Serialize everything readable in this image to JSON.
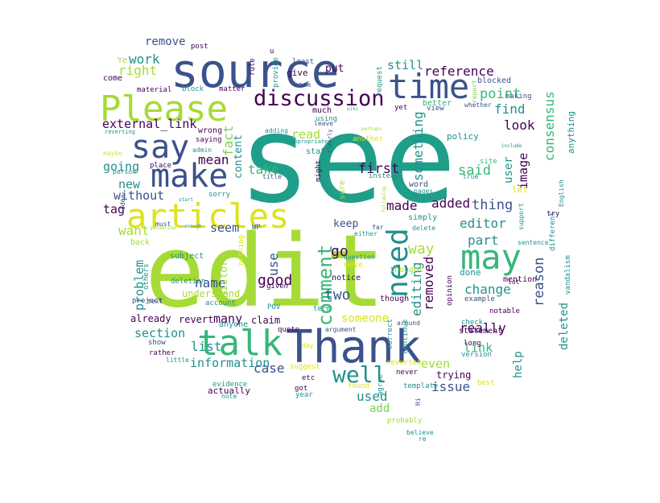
{
  "palette": {
    "dark_purple": "#440154",
    "indigo": "#3b528b",
    "navy": "#2c3e7a",
    "teal": "#21918c",
    "sea_green": "#1f9e89",
    "green": "#35b779",
    "lime": "#7ad151",
    "yellow_green": "#a5db36",
    "yellow": "#dde318"
  },
  "words": [
    {
      "text": "see",
      "color": "sea_green"
    },
    {
      "text": "edit",
      "color": "yellow_green"
    },
    {
      "text": "source",
      "color": "indigo"
    },
    {
      "text": "Please",
      "color": "yellow_green"
    },
    {
      "text": "Thank",
      "color": "indigo"
    },
    {
      "text": "articles",
      "color": "yellow"
    },
    {
      "text": "talk",
      "color": "green"
    },
    {
      "text": "make",
      "color": "indigo"
    },
    {
      "text": "say",
      "color": "indigo"
    },
    {
      "text": "time",
      "color": "indigo"
    },
    {
      "text": "discussion",
      "color": "dark_purple"
    },
    {
      "text": "need",
      "color": "teal"
    },
    {
      "text": "may",
      "color": "green"
    },
    {
      "text": "well",
      "color": "teal"
    },
    {
      "text": "comment",
      "color": "green"
    },
    {
      "text": "work",
      "color": "teal"
    },
    {
      "text": "right",
      "color": "yellow_green"
    },
    {
      "text": "remove",
      "color": "indigo"
    },
    {
      "text": "post",
      "color": "dark_purple"
    },
    {
      "text": "reference",
      "color": "dark_purple"
    },
    {
      "text": "still",
      "color": "teal"
    },
    {
      "text": "point",
      "color": "green"
    },
    {
      "text": "find",
      "color": "teal"
    },
    {
      "text": "look",
      "color": "dark_purple"
    },
    {
      "text": "external_link",
      "color": "dark_purple"
    },
    {
      "text": "fact",
      "color": "lime"
    },
    {
      "text": "mean",
      "color": "dark_purple"
    },
    {
      "text": "content",
      "color": "teal"
    },
    {
      "text": "read",
      "color": "yellow_green"
    },
    {
      "text": "going",
      "color": "teal"
    },
    {
      "text": "take",
      "color": "green"
    },
    {
      "text": "first",
      "color": "dark_purple"
    },
    {
      "text": "something",
      "color": "teal"
    },
    {
      "text": "said",
      "color": "green"
    },
    {
      "text": "user",
      "color": "teal"
    },
    {
      "text": "image",
      "color": "dark_purple"
    },
    {
      "text": "consensus",
      "color": "green"
    },
    {
      "text": "anything",
      "color": "teal"
    },
    {
      "text": "new",
      "color": "teal"
    },
    {
      "text": "without",
      "color": "indigo"
    },
    {
      "text": "tag",
      "color": "dark_purple"
    },
    {
      "text": "want",
      "color": "yellow_green"
    },
    {
      "text": "seem",
      "color": "indigo"
    },
    {
      "text": "made",
      "color": "dark_purple"
    },
    {
      "text": "added",
      "color": "dark_purple"
    },
    {
      "text": "thing",
      "color": "indigo"
    },
    {
      "text": "keep",
      "color": "indigo"
    },
    {
      "text": "editor",
      "color": "teal"
    },
    {
      "text": "go",
      "color": "dark_purple"
    },
    {
      "text": "way",
      "color": "yellow_green"
    },
    {
      "text": "part",
      "color": "teal"
    },
    {
      "text": "reason",
      "color": "indigo"
    },
    {
      "text": "problem",
      "color": "teal"
    },
    {
      "text": "use",
      "color": "indigo"
    },
    {
      "text": "good",
      "color": "dark_purple"
    },
    {
      "text": "name",
      "color": "indigo"
    },
    {
      "text": "two",
      "color": "indigo"
    },
    {
      "text": "editing",
      "color": "teal"
    },
    {
      "text": "removed",
      "color": "dark_purple"
    },
    {
      "text": "change",
      "color": "teal"
    },
    {
      "text": "deleted",
      "color": "teal"
    },
    {
      "text": "many",
      "color": "dark_purple"
    },
    {
      "text": "section",
      "color": "teal"
    },
    {
      "text": "list",
      "color": "teal"
    },
    {
      "text": "really",
      "color": "dark_purple"
    },
    {
      "text": "link",
      "color": "green"
    },
    {
      "text": "information",
      "color": "teal"
    },
    {
      "text": "case",
      "color": "indigo"
    },
    {
      "text": "even",
      "color": "yellow_green"
    },
    {
      "text": "issue",
      "color": "indigo"
    },
    {
      "text": "help",
      "color": "teal"
    },
    {
      "text": "used",
      "color": "teal"
    },
    {
      "text": "add",
      "color": "lime"
    },
    {
      "text": "history",
      "color": "yellow_green"
    },
    {
      "text": "someone",
      "color": "yellow"
    },
    {
      "text": "trying",
      "color": "dark_purple"
    },
    {
      "text": "already",
      "color": "dark_purple"
    },
    {
      "text": "revert",
      "color": "dark_purple"
    },
    {
      "text": "claim",
      "color": "dark_purple"
    },
    {
      "text": "understand",
      "color": "yellow_green"
    },
    {
      "text": "actually",
      "color": "dark_purple"
    },
    {
      "text": "Ye",
      "color": "yellow_green"
    },
    {
      "text": "come",
      "color": "dark_purple"
    },
    {
      "text": "material",
      "color": "dark_purple"
    },
    {
      "text": "block",
      "color": "teal"
    },
    {
      "text": "matter",
      "color": "dark_purple"
    },
    {
      "text": "give",
      "color": "dark_purple"
    },
    {
      "text": "book",
      "color": "indigo"
    },
    {
      "text": "put",
      "color": "dark_purple"
    },
    {
      "text": "least",
      "color": "indigo"
    },
    {
      "text": "rule",
      "color": "dark_purple"
    },
    {
      "text": "provide",
      "color": "teal"
    },
    {
      "text": "u",
      "color": "dark_purple"
    },
    {
      "text": "request",
      "color": "teal"
    },
    {
      "text": "blocked",
      "color": "indigo"
    },
    {
      "text": "better",
      "color": "green"
    },
    {
      "text": "yet",
      "color": "dark_purple"
    },
    {
      "text": "view",
      "color": "indigo"
    },
    {
      "text": "report",
      "color": "lime"
    },
    {
      "text": "whether",
      "color": "indigo"
    },
    {
      "text": "making",
      "color": "indigo"
    },
    {
      "text": "much",
      "color": "dark_purple"
    },
    {
      "text": "using",
      "color": "teal"
    },
    {
      "text": "leave",
      "color": "indigo"
    },
    {
      "text": "adding",
      "color": "teal"
    },
    {
      "text": "appropriate",
      "color": "teal"
    },
    {
      "text": "wiki",
      "color": "green"
    },
    {
      "text": "perhaps",
      "color": "yellow_green"
    },
    {
      "text": "another",
      "color": "yellow"
    },
    {
      "text": "policy",
      "color": "teal"
    },
    {
      "text": "site",
      "color": "green"
    },
    {
      "text": "include",
      "color": "teal"
    },
    {
      "text": "true",
      "color": "teal"
    },
    {
      "text": "wrong",
      "color": "dark_purple"
    },
    {
      "text": "saying",
      "color": "dark_purple"
    },
    {
      "text": "admin",
      "color": "teal"
    },
    {
      "text": "reverting",
      "color": "teal"
    },
    {
      "text": "maybe",
      "color": "yellow"
    },
    {
      "text": "place",
      "color": "dark_purple"
    },
    {
      "text": "person",
      "color": "teal"
    },
    {
      "text": "state",
      "color": "teal"
    },
    {
      "text": "might",
      "color": "dark_purple"
    },
    {
      "text": "title",
      "color": "indigo"
    },
    {
      "text": "clearly",
      "color": "indigo"
    },
    {
      "text": "instead",
      "color": "teal"
    },
    {
      "text": "following",
      "color": "yellow_green"
    },
    {
      "text": "word",
      "color": "indigo"
    },
    {
      "text": "pages",
      "color": "teal"
    },
    {
      "text": "let",
      "color": "yellow"
    },
    {
      "text": "English",
      "color": "teal"
    },
    {
      "text": "sorry",
      "color": "teal"
    },
    {
      "text": "start",
      "color": "teal"
    },
    {
      "text": "idea",
      "color": "indigo"
    },
    {
      "text": "sure",
      "color": "yellow_green"
    },
    {
      "text": "either",
      "color": "teal"
    },
    {
      "text": "simply",
      "color": "teal"
    },
    {
      "text": "delete",
      "color": "teal"
    },
    {
      "text": "support",
      "color": "teal"
    },
    {
      "text": "try",
      "color": "dark_purple"
    },
    {
      "text": "must",
      "color": "indigo"
    },
    {
      "text": "guideline",
      "color": "yellow_green"
    },
    {
      "text": "enough",
      "color": "teal"
    },
    {
      "text": "WP",
      "color": "indigo"
    },
    {
      "text": "far",
      "color": "indigo"
    },
    {
      "text": "different",
      "color": "teal"
    },
    {
      "text": "sentence",
      "color": "teal"
    },
    {
      "text": "back",
      "color": "yellow_green"
    },
    {
      "text": "subject",
      "color": "teal"
    },
    {
      "text": "nothing",
      "color": "yellow"
    },
    {
      "text": "thought",
      "color": "yellow_green"
    },
    {
      "text": "question",
      "color": "teal"
    },
    {
      "text": "move",
      "color": "yellow"
    },
    {
      "text": "done",
      "color": "teal"
    },
    {
      "text": "opinion",
      "color": "dark_purple"
    },
    {
      "text": "vandalism",
      "color": "teal"
    },
    {
      "text": "mention",
      "color": "dark_purple"
    },
    {
      "text": "lot",
      "color": "dark_purple"
    },
    {
      "text": "others",
      "color": "teal"
    },
    {
      "text": "deletion",
      "color": "teal"
    },
    {
      "text": "given",
      "color": "dark_purple"
    },
    {
      "text": "notice",
      "color": "dark_purple"
    },
    {
      "text": "though",
      "color": "dark_purple"
    },
    {
      "text": "example",
      "color": "indigo"
    },
    {
      "text": "notable",
      "color": "dark_purple"
    },
    {
      "text": "project",
      "color": "indigo"
    },
    {
      "text": "account",
      "color": "teal"
    },
    {
      "text": "POV",
      "color": "teal"
    },
    {
      "text": "term",
      "color": "teal"
    },
    {
      "text": "text",
      "color": "indigo"
    },
    {
      "text": "show",
      "color": "indigo"
    },
    {
      "text": "anyone",
      "color": "teal"
    },
    {
      "text": "quote",
      "color": "dark_purple"
    },
    {
      "text": "argument",
      "color": "indigo"
    },
    {
      "text": "around",
      "color": "indigo"
    },
    {
      "text": "check",
      "color": "teal"
    },
    {
      "text": "statement",
      "color": "dark_purple"
    },
    {
      "text": "rather",
      "color": "dark_purple"
    },
    {
      "text": "little",
      "color": "teal"
    },
    {
      "text": "correct",
      "color": "teal"
    },
    {
      "text": "day",
      "color": "yellow"
    },
    {
      "text": "continue",
      "color": "teal"
    },
    {
      "text": "long",
      "color": "dark_purple"
    },
    {
      "text": "version",
      "color": "teal"
    },
    {
      "text": "suggest",
      "color": "yellow"
    },
    {
      "text": "reverted",
      "color": "yellow"
    },
    {
      "text": "never",
      "color": "dark_purple"
    },
    {
      "text": "evidence",
      "color": "teal"
    },
    {
      "text": "etc",
      "color": "dark_purple"
    },
    {
      "text": "got",
      "color": "dark_purple"
    },
    {
      "text": "year",
      "color": "teal"
    },
    {
      "text": "note",
      "color": "teal"
    },
    {
      "text": "found",
      "color": "yellow"
    },
    {
      "text": "template",
      "color": "teal"
    },
    {
      "text": "best",
      "color": "yellow"
    },
    {
      "text": "agree",
      "color": "teal"
    },
    {
      "text": "probably",
      "color": "yellow_green"
    },
    {
      "text": "Hi",
      "color": "indigo"
    },
    {
      "text": "believe",
      "color": "teal"
    },
    {
      "text": "re",
      "color": "teal"
    },
    {
      "text": "bit",
      "color": "teal"
    }
  ]
}
